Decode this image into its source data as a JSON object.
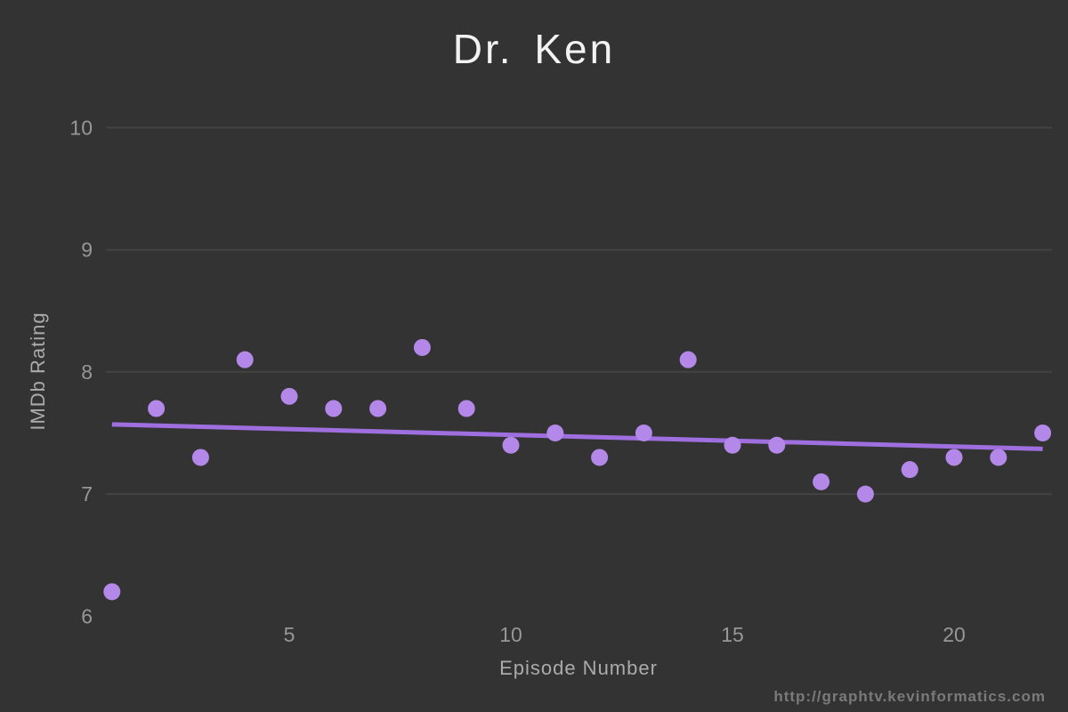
{
  "page": {
    "watermark": "http://graphtv.kevinformatics.com"
  },
  "chart_data": {
    "type": "scatter",
    "title": "Dr. Ken",
    "xlabel": "Episode Number",
    "ylabel": "IMDb Rating",
    "x": [
      1,
      2,
      3,
      4,
      5,
      6,
      7,
      8,
      9,
      10,
      11,
      12,
      13,
      14,
      15,
      16,
      17,
      18,
      19,
      20,
      21,
      22
    ],
    "y": [
      6.2,
      7.7,
      7.3,
      8.1,
      7.8,
      7.7,
      7.7,
      8.2,
      7.7,
      7.4,
      7.5,
      7.3,
      7.5,
      8.1,
      7.4,
      7.4,
      7.1,
      7.0,
      7.2,
      7.3,
      7.3,
      7.5
    ],
    "x_ticks": [
      5,
      10,
      15,
      20
    ],
    "y_ticks": [
      6,
      7,
      8,
      9,
      10
    ],
    "gridline_ratings": [
      7,
      8,
      9,
      10
    ],
    "xlim": [
      1,
      22
    ],
    "ylim": [
      6,
      10
    ],
    "legend": "none",
    "trendline": {
      "x_start": 1,
      "y_start": 7.57,
      "x_end": 22,
      "y_end": 7.37
    },
    "colors": {
      "background": "#333333",
      "title_text": "#f2f2f2",
      "axis_title_text": "#ababab",
      "tick_text": "#979797",
      "gridline": "#434343",
      "dot": "#b388e8",
      "trend_line": "#9f6fe0",
      "watermark_text": "#7a7a7a"
    }
  }
}
